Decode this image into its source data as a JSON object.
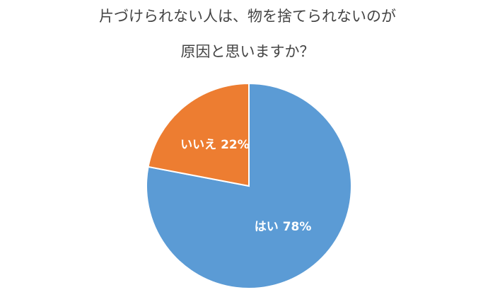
{
  "chart_data": {
    "type": "pie",
    "title": [
      "片づけられない人は、物を捨てられないのが",
      "原因と思いますか？"
    ],
    "categories": [
      "はい",
      "いいえ"
    ],
    "values": [
      78,
      22
    ],
    "value_labels": [
      "78%",
      "22%"
    ],
    "colors": [
      "#5b9bd5",
      "#ed7d31"
    ]
  }
}
